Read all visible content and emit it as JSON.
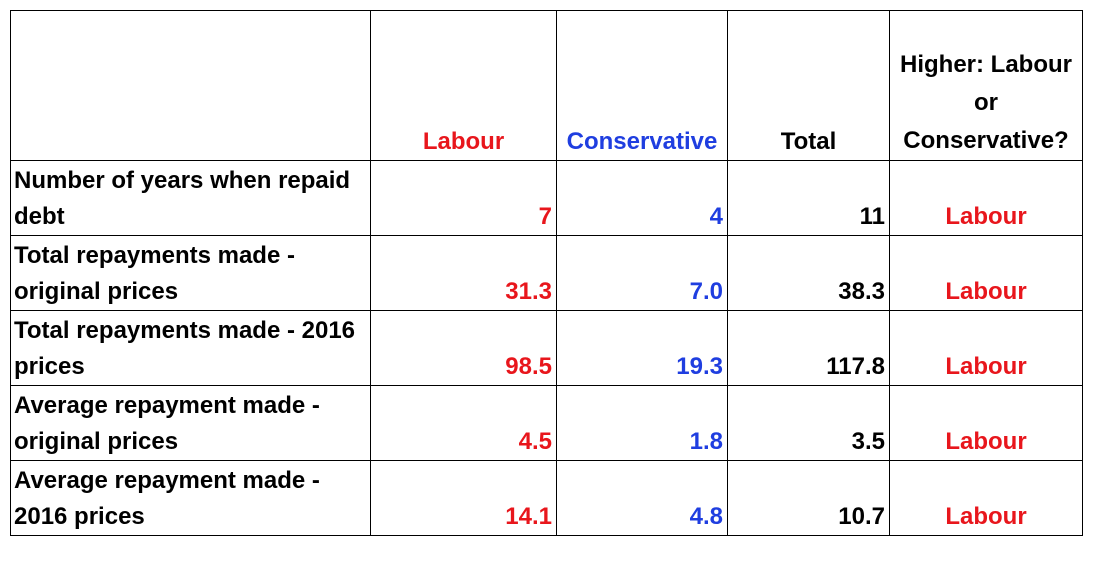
{
  "colors": {
    "labour": "#e8161c",
    "conservative": "#1f3ee0",
    "neutral": "#000000"
  },
  "header": {
    "labour": "Labour",
    "conservative": "Conservative",
    "total": "Total",
    "higher": "Higher: Labour or Conservative?"
  },
  "rows": [
    {
      "label": "Number of years when repaid debt",
      "labour": "7",
      "conservative": "4",
      "total": "11",
      "higher": "Labour"
    },
    {
      "label": "Total repayments made - original prices",
      "labour": "31.3",
      "conservative": "7.0",
      "total": "38.3",
      "higher": "Labour"
    },
    {
      "label": "Total repayments made - 2016 prices",
      "labour": "98.5",
      "conservative": "19.3",
      "total": "117.8",
      "higher": "Labour"
    },
    {
      "label": "Average repayment made - original prices",
      "labour": "4.5",
      "conservative": "1.8",
      "total": "3.5",
      "higher": "Labour"
    },
    {
      "label": "Average repayment made - 2016 prices",
      "labour": "14.1",
      "conservative": "4.8",
      "total": "10.7",
      "higher": "Labour"
    }
  ]
}
